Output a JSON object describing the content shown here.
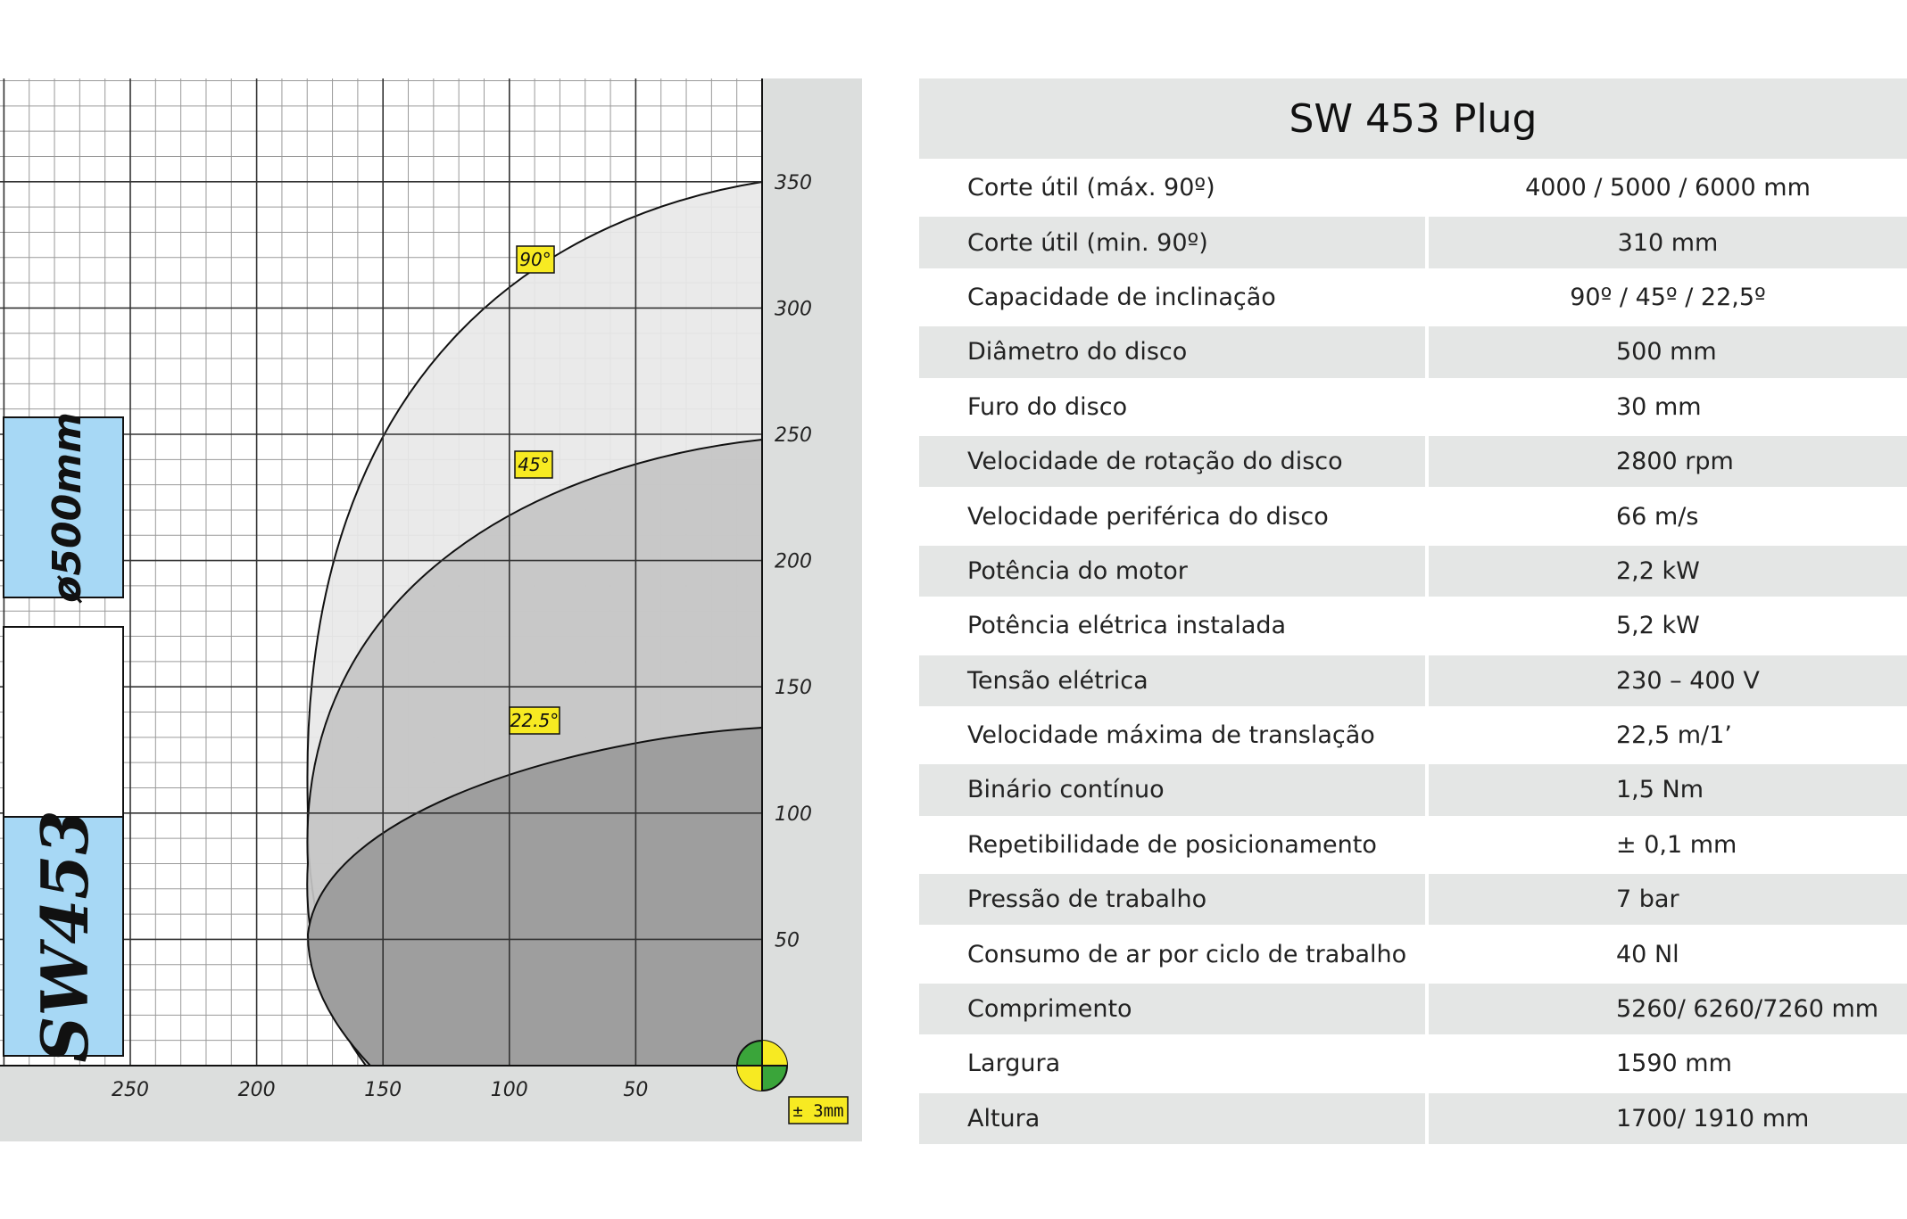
{
  "chart": {
    "diameter_label": "ø500mm",
    "model_label": "SW453",
    "tolerance_label": "± 3mm",
    "angle_labels": [
      "90°",
      "45°",
      "22.5°"
    ],
    "y_ticks": [
      "350",
      "300",
      "250",
      "200",
      "150",
      "100",
      "50"
    ],
    "x_ticks": [
      "250",
      "200",
      "150",
      "100",
      "50"
    ],
    "colors": {
      "label_box_fill": "#a7d8f5",
      "angle_label_fill": "#f7ea22",
      "margin_gray": "#dcdedd",
      "zone_90": "#e8e8e8",
      "zone_45": "#c6c6c6",
      "zone_22_5": "#9e9e9e",
      "marker_green": "#3aa53a",
      "marker_yellow": "#f7ea22"
    }
  },
  "table": {
    "title": "SW 453 Plug",
    "rows": [
      {
        "label": "Corte útil (máx. 90º)",
        "value": "4000 / 5000 / 6000 mm"
      },
      {
        "label": "Corte útil (min. 90º)",
        "value": "310 mm"
      },
      {
        "label": "Capacidade de inclinação",
        "value": "90º / 45º / 22,5º"
      },
      {
        "label": "Diâmetro do disco",
        "value": "500 mm"
      },
      {
        "label": "Furo do disco",
        "value": "30 mm"
      },
      {
        "label": "Velocidade de rotação do disco",
        "value": "2800 rpm"
      },
      {
        "label": "Velocidade periférica do disco",
        "value": "66 m/s"
      },
      {
        "label": "Potência do motor",
        "value": "2,2 kW"
      },
      {
        "label": "Potência elétrica instalada",
        "value": "5,2 kW"
      },
      {
        "label": "Tensão elétrica",
        "value": "230 – 400 V"
      },
      {
        "label": "Velocidade máxima de translação",
        "value": "22,5 m/1’"
      },
      {
        "label": "Binário contínuo",
        "value": "1,5 Nm"
      },
      {
        "label": "Repetibilidade de posicionamento",
        "value": "± 0,1 mm"
      },
      {
        "label": "Pressão de trabalho",
        "value": "7 bar"
      },
      {
        "label": "Consumo de ar por ciclo de trabalho",
        "value": "40 Nl"
      },
      {
        "label": "Comprimento",
        "value": "5260/ 6260/7260 mm"
      },
      {
        "label": "Largura",
        "value": "1590 mm"
      },
      {
        "label": "Altura",
        "value": "1700/ 1910 mm"
      }
    ]
  }
}
